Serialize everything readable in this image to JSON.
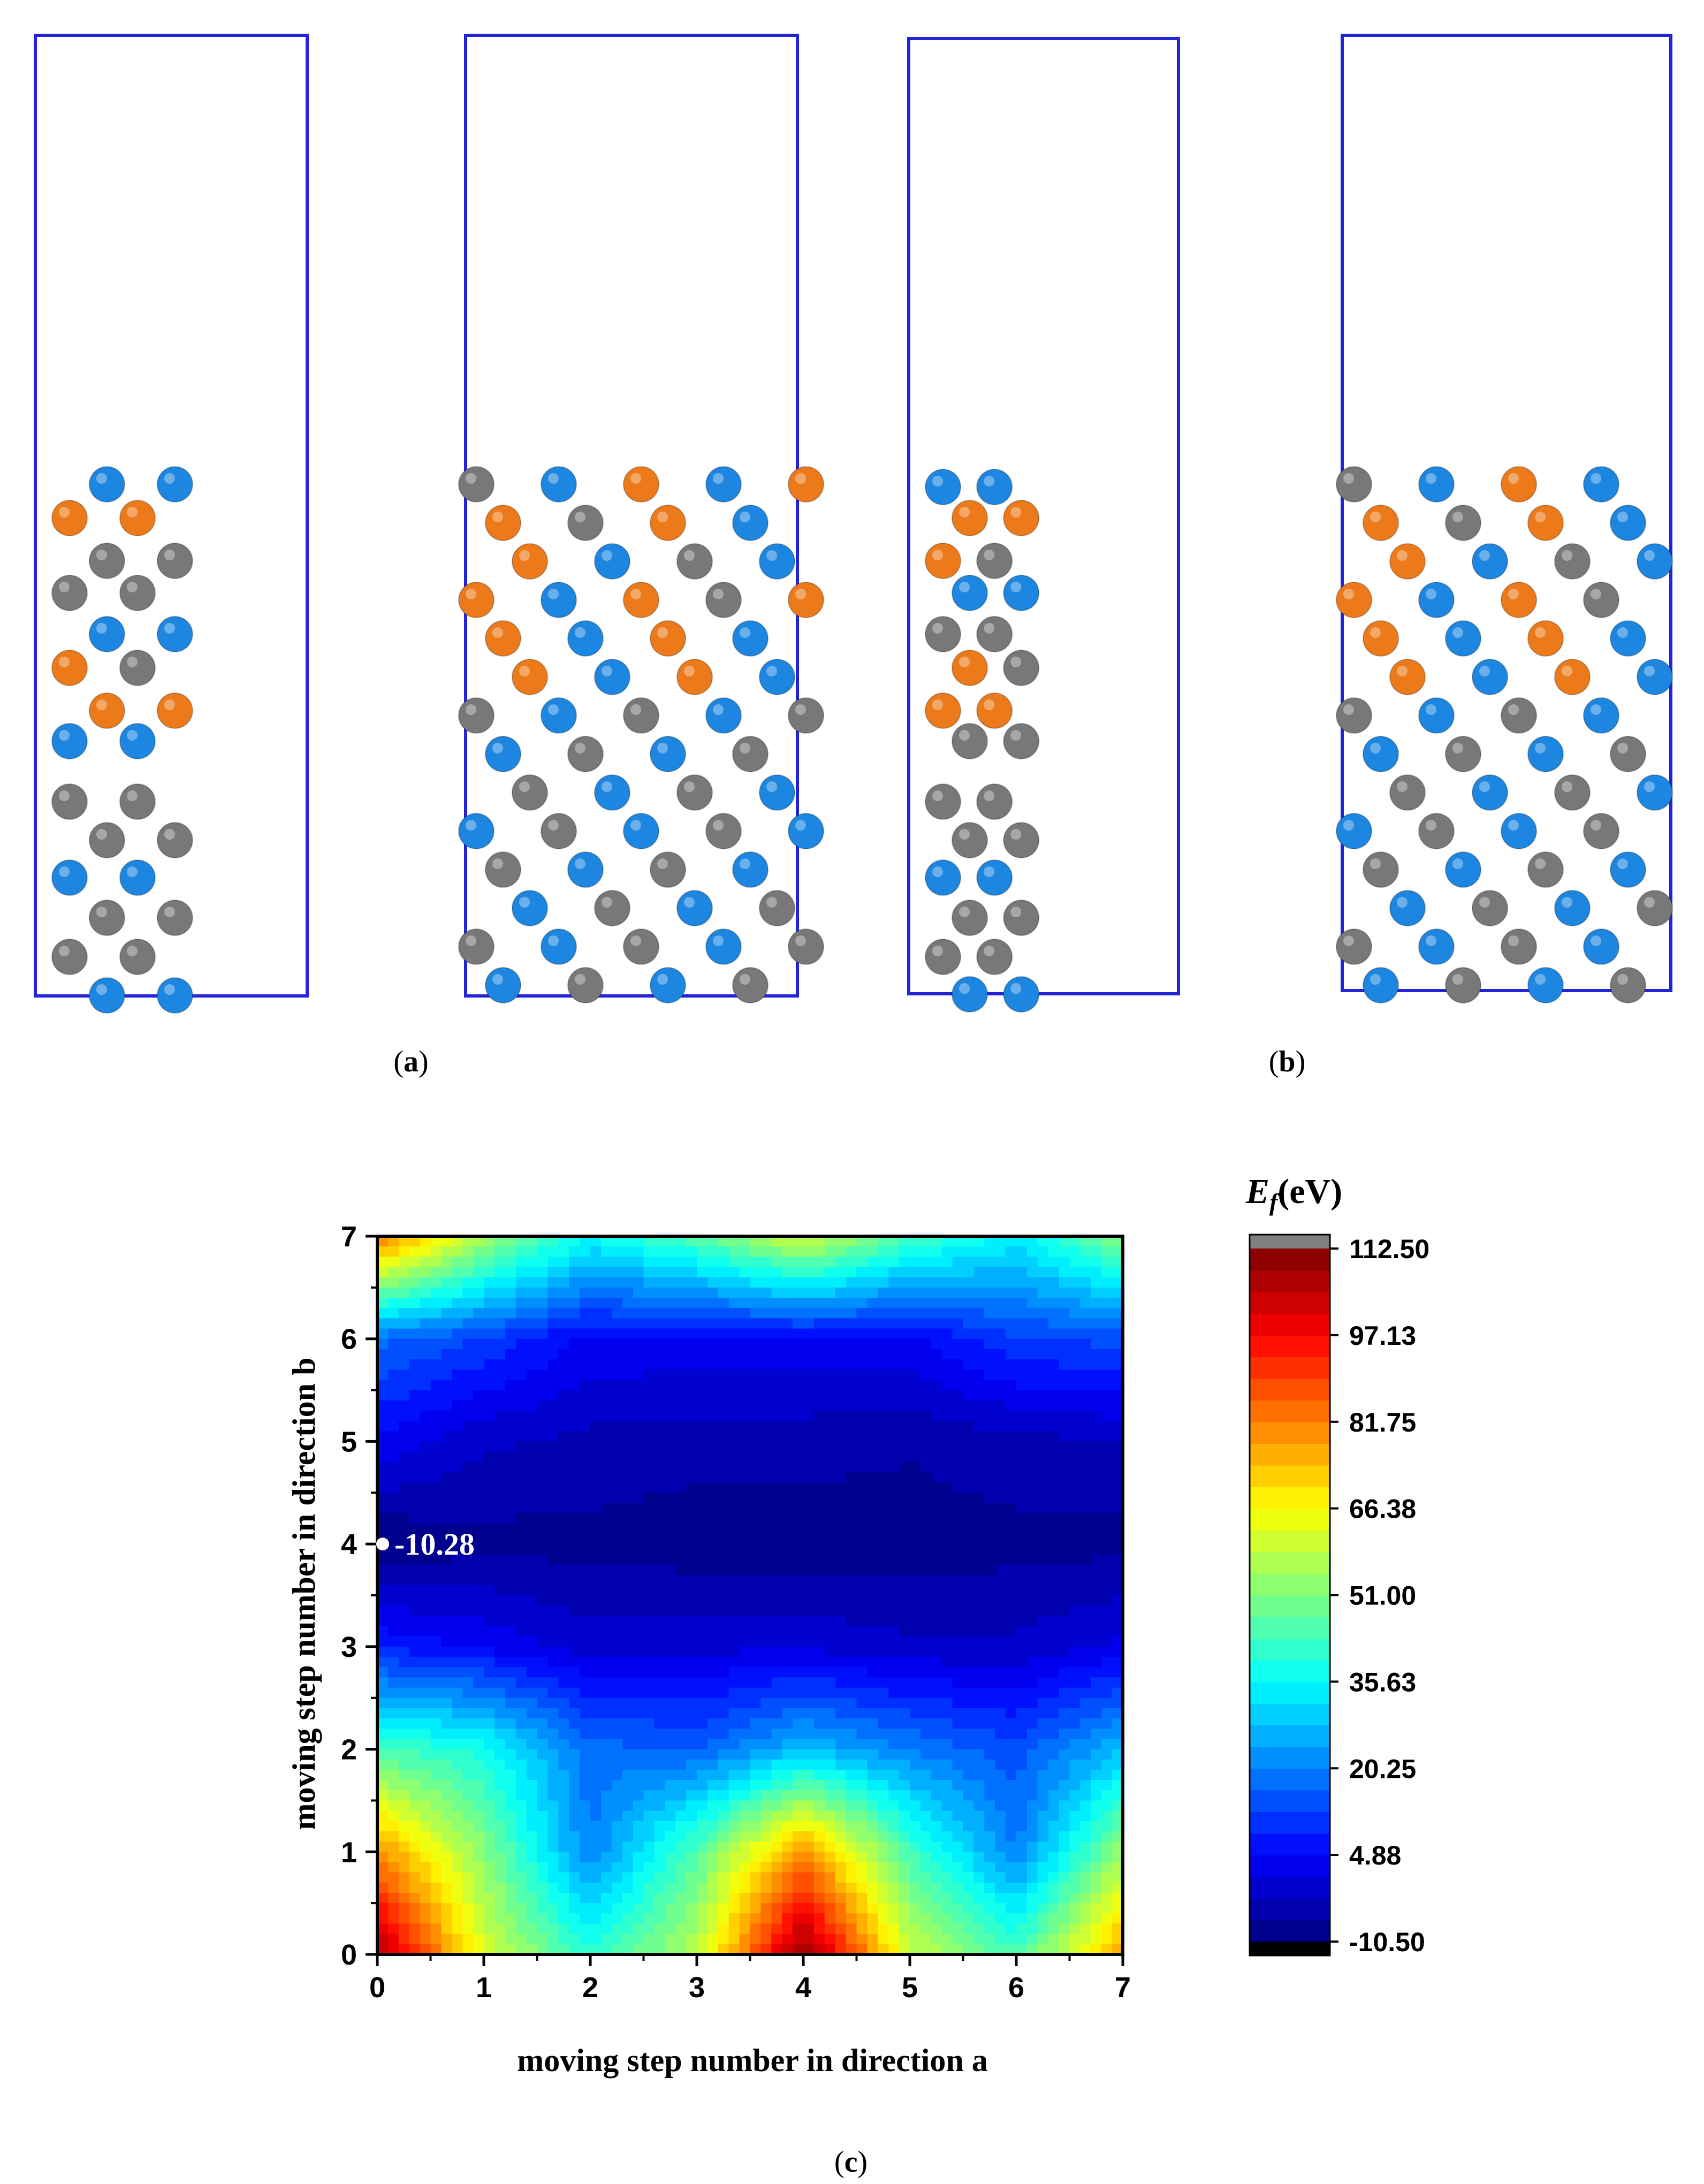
{
  "panels": {
    "a_label_letter": "a",
    "b_label_letter": "b",
    "c_label_letter": "c"
  },
  "colors": {
    "cell_border": "#2323d8",
    "atom_gray": "#787878",
    "atom_blue": "#1c86e0",
    "atom_orange": "#ec7a1a"
  },
  "chart_data": {
    "type": "heatmap",
    "subtype": "filled-contour",
    "xlabel": "moving step number in direction a",
    "ylabel": "moving step number in direction b",
    "xlim": [
      0,
      7
    ],
    "ylim": [
      0,
      7
    ],
    "x": [
      0,
      1,
      2,
      3,
      4,
      5,
      6,
      7
    ],
    "y": [
      0,
      1,
      2,
      3,
      4,
      5,
      6,
      7
    ],
    "x_ticks": [
      "0",
      "1",
      "2",
      "3",
      "4",
      "5",
      "6",
      "7"
    ],
    "y_ticks": [
      "0",
      "1",
      "2",
      "3",
      "4",
      "5",
      "6",
      "7"
    ],
    "z_rows_by_y": [
      [
        108,
        62,
        40,
        58,
        112,
        60,
        44,
        78
      ],
      [
        80,
        52,
        20,
        46,
        80,
        44,
        20,
        54
      ],
      [
        44,
        38,
        18,
        16,
        28,
        20,
        14,
        28
      ],
      [
        8,
        4,
        -1,
        0,
        0,
        -2,
        -2,
        2
      ],
      [
        -10.28,
        -8,
        -8,
        -9,
        -9,
        -9,
        -8,
        -8
      ],
      [
        4,
        -2,
        -4,
        -5,
        -5,
        -6,
        -4,
        -3
      ],
      [
        18,
        12,
        4,
        4,
        4,
        4,
        12,
        14
      ],
      [
        84,
        56,
        36,
        46,
        62,
        44,
        34,
        52
      ]
    ],
    "colorbar": {
      "title_symbol": "E",
      "title_subscript": "f",
      "title_unit": "(eV)",
      "min": -10.5,
      "max": 112.5,
      "tick_values": [
        -10.5,
        4.88,
        20.25,
        35.63,
        51.0,
        66.38,
        81.75,
        97.13,
        112.5
      ],
      "tick_labels": [
        "-10.50",
        "4.88",
        "20.25",
        "35.63",
        "51.00",
        "66.38",
        "81.75",
        "97.13",
        "112.50"
      ],
      "over_color": "#808080",
      "under_color": "#000000"
    },
    "annotations": [
      {
        "x": 0,
        "y": 4,
        "text": "-10.28"
      }
    ]
  }
}
